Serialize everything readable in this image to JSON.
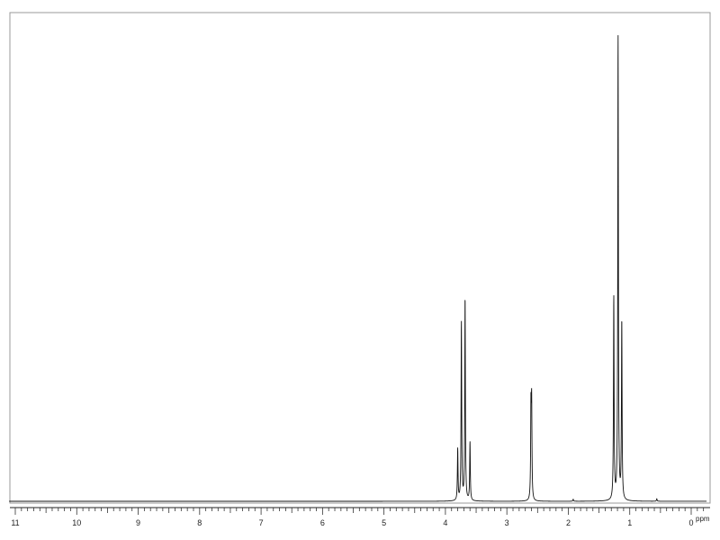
{
  "chart_data": {
    "type": "line",
    "title": "",
    "xlabel": "ppm",
    "ylabel": "",
    "x_reversed": true,
    "xlim": [
      11.2,
      -0.2
    ],
    "ylim": [
      0,
      100
    ],
    "major_ticks": [
      11,
      10,
      9,
      8,
      7,
      6,
      5,
      4,
      3,
      2,
      1,
      0
    ],
    "minor_tick_step": 0.1,
    "grid": false,
    "peaks": [
      {
        "ppm": 3.8,
        "height": 10.5
      },
      {
        "ppm": 3.74,
        "height": 36.5
      },
      {
        "ppm": 3.68,
        "height": 41.5
      },
      {
        "ppm": 3.6,
        "height": 12.0
      },
      {
        "ppm": 2.608,
        "height": 18.0
      },
      {
        "ppm": 2.597,
        "height": 19.0
      },
      {
        "ppm": 1.26,
        "height": 41.5
      },
      {
        "ppm": 1.19,
        "height": 95.0
      },
      {
        "ppm": 1.13,
        "height": 36.5
      },
      {
        "ppm": 1.92,
        "height": 0.4
      },
      {
        "ppm": 0.56,
        "height": 0.5
      }
    ]
  }
}
